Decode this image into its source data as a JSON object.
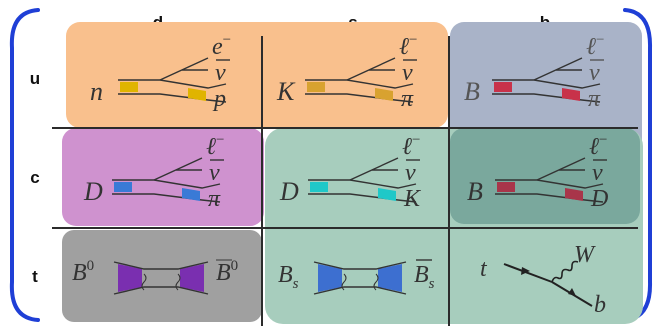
{
  "columns": [
    "d",
    "s",
    "b"
  ],
  "rows": [
    "u",
    "c",
    "t"
  ],
  "colors": {
    "bracket": "#1f3fd6",
    "orange_box": "#f9c08d",
    "blue_grey_box": "#a9b3c8",
    "magenta_box": "#cf92cf",
    "teal_box": "#a7cdbd",
    "grey_box": "#a0a0a0",
    "grid_line": "#2b2b2b"
  },
  "cells": {
    "ud": {
      "initial": "n",
      "out_lepton": "e",
      "out_lepton_sup": "−",
      "out_nu": "ν",
      "out_hadron": "p",
      "blob_color": "#e0b400"
    },
    "us": {
      "initial": "K",
      "out_lepton": "ℓ",
      "out_lepton_sup": "−",
      "out_nu": "ν",
      "out_hadron": "π",
      "blob_color": "#d8a230"
    },
    "ub": {
      "initial": "B",
      "out_lepton": "ℓ",
      "out_lepton_sup": "−",
      "out_nu": "ν",
      "out_hadron": "π",
      "blob_color": "#c8324a"
    },
    "cd": {
      "initial": "D",
      "out_lepton": "ℓ",
      "out_lepton_sup": "−",
      "out_nu": "ν",
      "out_hadron": "π",
      "blob_color": "#3a7ad6"
    },
    "cs": {
      "initial": "D",
      "out_lepton": "ℓ",
      "out_lepton_sup": "−",
      "out_nu": "ν",
      "out_hadron": "K",
      "blob_color": "#1fc8c8"
    },
    "cb": {
      "initial": "B",
      "out_lepton": "ℓ",
      "out_lepton_sup": "−",
      "out_nu": "ν",
      "out_hadron": "D",
      "blob_color": "#a8354a"
    },
    "td": {
      "left": "B",
      "left_sup": "0",
      "right": "B",
      "right_sup": "0",
      "blob_color": "#7a2fb0"
    },
    "ts": {
      "left": "B",
      "left_sub": "s",
      "right": "B",
      "right_sub": "s",
      "blob_color": "#3d6fd0"
    },
    "tb": {
      "top": "t",
      "boson": "W",
      "bottom": "b"
    }
  }
}
